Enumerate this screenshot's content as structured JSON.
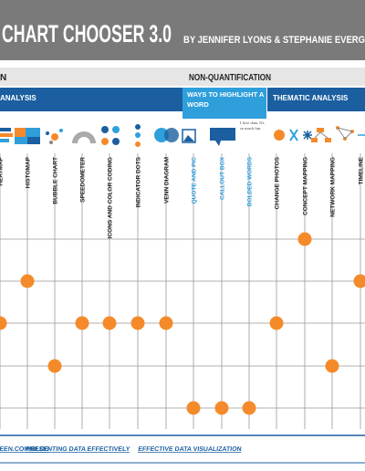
{
  "header": {
    "title": "CHART CHOOSER 3.0",
    "byline": "BY JENNIFER LYONS & STEPHANIE EVERG"
  },
  "sections": {
    "left": "N",
    "right": "NON-QUANTIFICATION"
  },
  "groups": {
    "left": "ANALYSIS",
    "highlight": "WAYS TO HIGHLIGHT A WORD",
    "thematic": "THEMATIC ANALYSIS"
  },
  "icon_text": "I love data. It's so much fun.",
  "columns": [
    "HEATMAP",
    "HISTOMAP",
    "BUBBLE CHART",
    "SPEEDOMETER",
    "ICONS AND COLOR CODING",
    "INDICATOR DOTS",
    "VENN DIAGRAM",
    "QUOTE AND PIC",
    "CALLOUT BOX",
    "BOLDED WORDS",
    "CHANGE PHOTOS",
    "CONCEPT MAPPING",
    "NETWORK MAPPING",
    "TIMELINE"
  ],
  "footer": {
    "links": [
      "HANIEEVERGREEN.COM/BLOG",
      "PRESENTING DATA EFFECTIVELY",
      "EFFECTIVE DATA VISUALIZATION"
    ]
  }
}
